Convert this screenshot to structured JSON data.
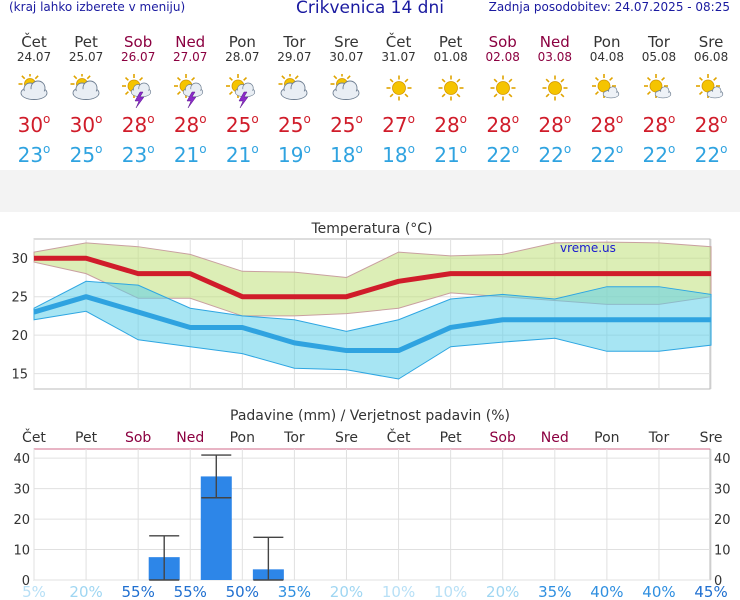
{
  "header": {
    "menu_hint": "(kraj lahko izberete v meniju)",
    "title": "Crikvenica 14 dni",
    "updated": "Zadnja posodobitev: 24.07.2025 - 08:25"
  },
  "days": [
    {
      "name": "Čet",
      "date": "24.07",
      "weekend": false,
      "icon": "partly-cloudy-icon",
      "tmax": "30",
      "tmin": "23"
    },
    {
      "name": "Pet",
      "date": "25.07",
      "weekend": false,
      "icon": "partly-cloudy-icon",
      "tmax": "30",
      "tmin": "25"
    },
    {
      "name": "Sob",
      "date": "26.07",
      "weekend": true,
      "icon": "sun-thunder-icon",
      "tmax": "28",
      "tmin": "23"
    },
    {
      "name": "Ned",
      "date": "27.07",
      "weekend": true,
      "icon": "sun-thunder-icon",
      "tmax": "28",
      "tmin": "21"
    },
    {
      "name": "Pon",
      "date": "28.07",
      "weekend": false,
      "icon": "sun-thunder-icon",
      "tmax": "25",
      "tmin": "21"
    },
    {
      "name": "Tor",
      "date": "29.07",
      "weekend": false,
      "icon": "partly-cloudy-icon",
      "tmax": "25",
      "tmin": "19"
    },
    {
      "name": "Sre",
      "date": "30.07",
      "weekend": false,
      "icon": "partly-cloudy-icon",
      "tmax": "25",
      "tmin": "18"
    },
    {
      "name": "Čet",
      "date": "31.07",
      "weekend": false,
      "icon": "sun-icon",
      "tmax": "27",
      "tmin": "18"
    },
    {
      "name": "Pet",
      "date": "01.08",
      "weekend": false,
      "icon": "sun-icon",
      "tmax": "28",
      "tmin": "21"
    },
    {
      "name": "Sob",
      "date": "02.08",
      "weekend": true,
      "icon": "sun-icon",
      "tmax": "28",
      "tmin": "22"
    },
    {
      "name": "Ned",
      "date": "03.08",
      "weekend": true,
      "icon": "sun-icon",
      "tmax": "28",
      "tmin": "22"
    },
    {
      "name": "Pon",
      "date": "04.08",
      "weekend": false,
      "icon": "sun-cloud-icon",
      "tmax": "28",
      "tmin": "22"
    },
    {
      "name": "Tor",
      "date": "05.08",
      "weekend": false,
      "icon": "sun-cloud-icon",
      "tmax": "28",
      "tmin": "22"
    },
    {
      "name": "Sre",
      "date": "06.08",
      "weekend": false,
      "icon": "sun-cloud-icon",
      "tmax": "28",
      "tmin": "22"
    }
  ],
  "degree_symbol": "o",
  "colors": {
    "max": "#d01c2a",
    "min": "#2fa3e0",
    "bar": "#2d86e8",
    "weekend": "#8b0040"
  },
  "chart_data": [
    {
      "type": "line",
      "title": "Temperatura (°C)",
      "watermark": "vreme.us",
      "yticks": [
        "15",
        "20",
        "25",
        "30"
      ],
      "ylim": [
        13,
        32.5
      ],
      "x": [
        "Čet",
        "Pet",
        "Sob",
        "Ned",
        "Pon",
        "Tor",
        "Sre",
        "Čet",
        "Pet",
        "Sob",
        "Ned",
        "Pon",
        "Tor",
        "Sre"
      ],
      "series": [
        {
          "role": "max",
          "values": [
            30,
            30,
            28,
            28,
            25,
            25,
            25,
            27,
            28,
            28,
            28,
            28,
            28,
            28
          ]
        },
        {
          "role": "max_range_high",
          "values": [
            30.8,
            32,
            31.5,
            30.5,
            28.3,
            28.2,
            27.5,
            30.8,
            30.3,
            30.5,
            32,
            32.1,
            32,
            31.5
          ]
        },
        {
          "role": "max_range_low",
          "values": [
            29.5,
            28,
            24.8,
            24.8,
            22.5,
            22.5,
            22.8,
            23.5,
            25.5,
            25,
            24.5,
            24,
            24,
            25
          ]
        },
        {
          "role": "min",
          "values": [
            23,
            25,
            23,
            21,
            21,
            19,
            18,
            18,
            21,
            22,
            22,
            22,
            22,
            22
          ]
        },
        {
          "role": "min_range_high",
          "values": [
            23.5,
            27,
            26.5,
            23.5,
            22.5,
            22,
            20.5,
            22,
            24.7,
            25.3,
            24.7,
            26.3,
            26.3,
            25.3
          ]
        },
        {
          "role": "min_range_low",
          "values": [
            22,
            23.1,
            19.4,
            18.5,
            17.6,
            15.7,
            15.5,
            14.3,
            18.5,
            19.1,
            19.6,
            17.9,
            17.9,
            18.7
          ]
        }
      ]
    },
    {
      "type": "bar",
      "title": "Padavine (mm) / Verjetnost padavin (%)",
      "yticks": [
        "0",
        "10",
        "20",
        "30",
        "40"
      ],
      "ylim": [
        0,
        43
      ],
      "categories": [
        "Čet",
        "Pet",
        "Sob",
        "Ned",
        "Pon",
        "Tor",
        "Sre",
        "Čet",
        "Pet",
        "Sob",
        "Ned",
        "Pon",
        "Tor",
        "Sre"
      ],
      "values": [
        0,
        0,
        7.5,
        34,
        3.5,
        0,
        0,
        0,
        0,
        0,
        0,
        0,
        0,
        0
      ],
      "error_low": [
        0,
        0,
        0,
        27,
        0,
        0,
        0,
        0,
        0,
        0,
        0,
        0,
        0,
        0
      ],
      "error_high": [
        0,
        0,
        14.5,
        41,
        14,
        0,
        0,
        0,
        0,
        0,
        0,
        0,
        0,
        0
      ],
      "probability": [
        "5%",
        "20%",
        "55%",
        "55%",
        "50%",
        "35%",
        "20%",
        "10%",
        "10%",
        "20%",
        "35%",
        "40%",
        "40%",
        "45%"
      ]
    }
  ]
}
